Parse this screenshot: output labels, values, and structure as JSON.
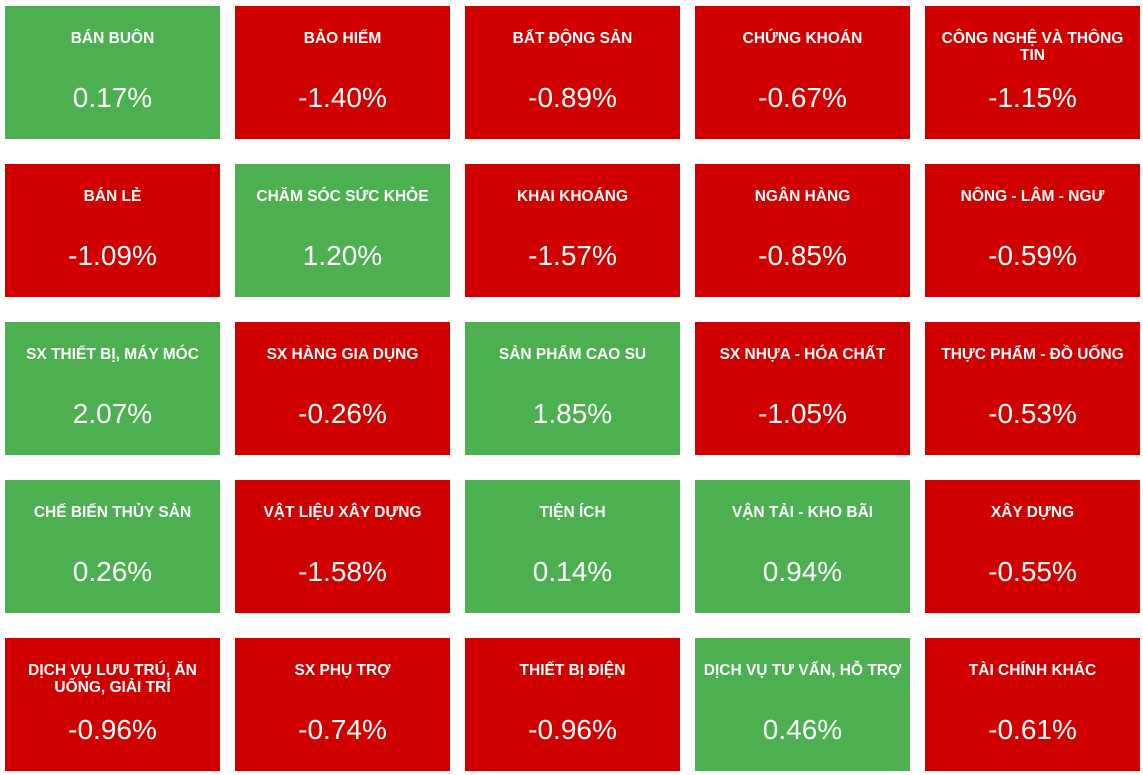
{
  "colors": {
    "up": "#4caf50",
    "down": "#d00000",
    "text": "#ffffff"
  },
  "sectors": [
    {
      "name": "BÁN BUÔN",
      "change": "0.17%",
      "direction": "up"
    },
    {
      "name": "BẢO HIỂM",
      "change": "-1.40%",
      "direction": "down"
    },
    {
      "name": "BẤT ĐỘNG SẢN",
      "change": "-0.89%",
      "direction": "down"
    },
    {
      "name": "CHỨNG KHOÁN",
      "change": "-0.67%",
      "direction": "down"
    },
    {
      "name": "CÔNG NGHỆ VÀ THÔNG TIN",
      "change": "-1.15%",
      "direction": "down"
    },
    {
      "name": "BÁN LẺ",
      "change": "-1.09%",
      "direction": "down"
    },
    {
      "name": "CHĂM SÓC SỨC KHỎE",
      "change": "1.20%",
      "direction": "up"
    },
    {
      "name": "KHAI KHOÁNG",
      "change": "-1.57%",
      "direction": "down"
    },
    {
      "name": "NGÂN HÀNG",
      "change": "-0.85%",
      "direction": "down"
    },
    {
      "name": "NÔNG - LÂM - NGƯ",
      "change": "-0.59%",
      "direction": "down"
    },
    {
      "name": "SX THIẾT BỊ, MÁY MÓC",
      "change": "2.07%",
      "direction": "up"
    },
    {
      "name": "SX HÀNG GIA DỤNG",
      "change": "-0.26%",
      "direction": "down"
    },
    {
      "name": "SẢN PHẨM CAO SU",
      "change": "1.85%",
      "direction": "up"
    },
    {
      "name": "SX NHỰA - HÓA CHẤT",
      "change": "-1.05%",
      "direction": "down"
    },
    {
      "name": "THỰC PHẨM - ĐỒ UỐNG",
      "change": "-0.53%",
      "direction": "down"
    },
    {
      "name": "CHẾ BIẾN THỦY SẢN",
      "change": "0.26%",
      "direction": "up"
    },
    {
      "name": "VẬT LIỆU XÂY DỰNG",
      "change": "-1.58%",
      "direction": "down"
    },
    {
      "name": "TIỆN ÍCH",
      "change": "0.14%",
      "direction": "up"
    },
    {
      "name": "VẬN TẢI - KHO BÃI",
      "change": "0.94%",
      "direction": "up"
    },
    {
      "name": "XÂY DỰNG",
      "change": "-0.55%",
      "direction": "down"
    },
    {
      "name": "DỊCH VỤ LƯU TRÚ, ĂN UỐNG, GIẢI TRÍ",
      "change": "-0.96%",
      "direction": "down"
    },
    {
      "name": "SX PHỤ TRỢ",
      "change": "-0.74%",
      "direction": "down"
    },
    {
      "name": "THIẾT BỊ ĐIỆN",
      "change": "-0.96%",
      "direction": "down"
    },
    {
      "name": "DỊCH VỤ TƯ VẤN, HỖ TRỢ",
      "change": "0.46%",
      "direction": "up"
    },
    {
      "name": "TÀI CHÍNH KHÁC",
      "change": "-0.61%",
      "direction": "down"
    }
  ]
}
